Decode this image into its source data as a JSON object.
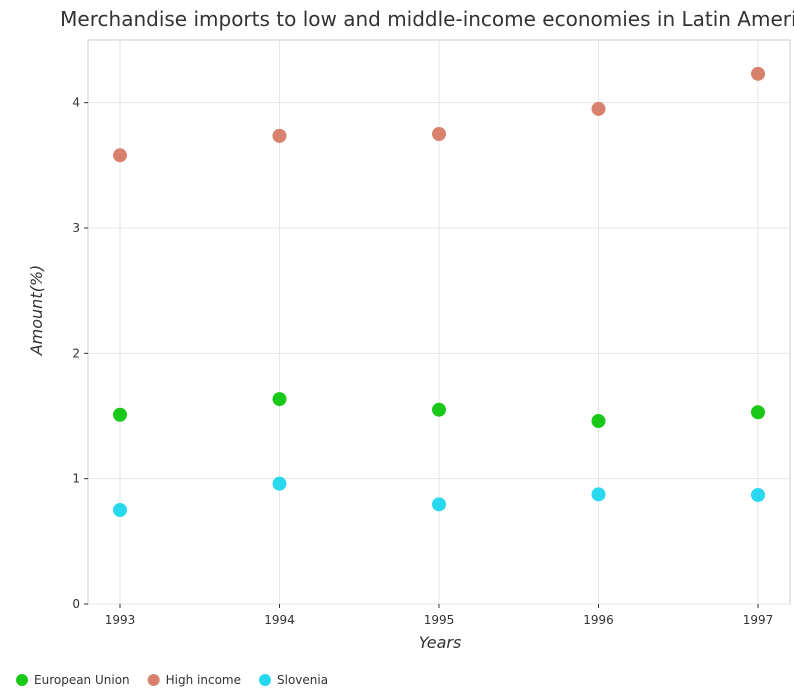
{
  "chart_data": {
    "type": "scatter",
    "title": "Merchandise imports to low and middle-income economies in Latin America",
    "xlabel": "Years",
    "ylabel": "Amount(%)",
    "x": [
      "1993",
      "1994",
      "1995",
      "1996",
      "1997"
    ],
    "ylim": [
      0,
      4.5
    ],
    "yticks": [
      "0",
      "1",
      "2",
      "3",
      "4"
    ],
    "grid": true,
    "legend_position": "bottom-left",
    "series": [
      {
        "name": "European Union",
        "color": "#1ac81a",
        "values": [
          1.51,
          1.635,
          1.55,
          1.46,
          1.53
        ]
      },
      {
        "name": "High income",
        "color": "#d8826e",
        "values": [
          3.58,
          3.735,
          3.75,
          3.95,
          4.23
        ]
      },
      {
        "name": "Slovenia",
        "color": "#28d8ee",
        "values": [
          0.75,
          0.96,
          0.795,
          0.875,
          0.87
        ]
      }
    ]
  }
}
